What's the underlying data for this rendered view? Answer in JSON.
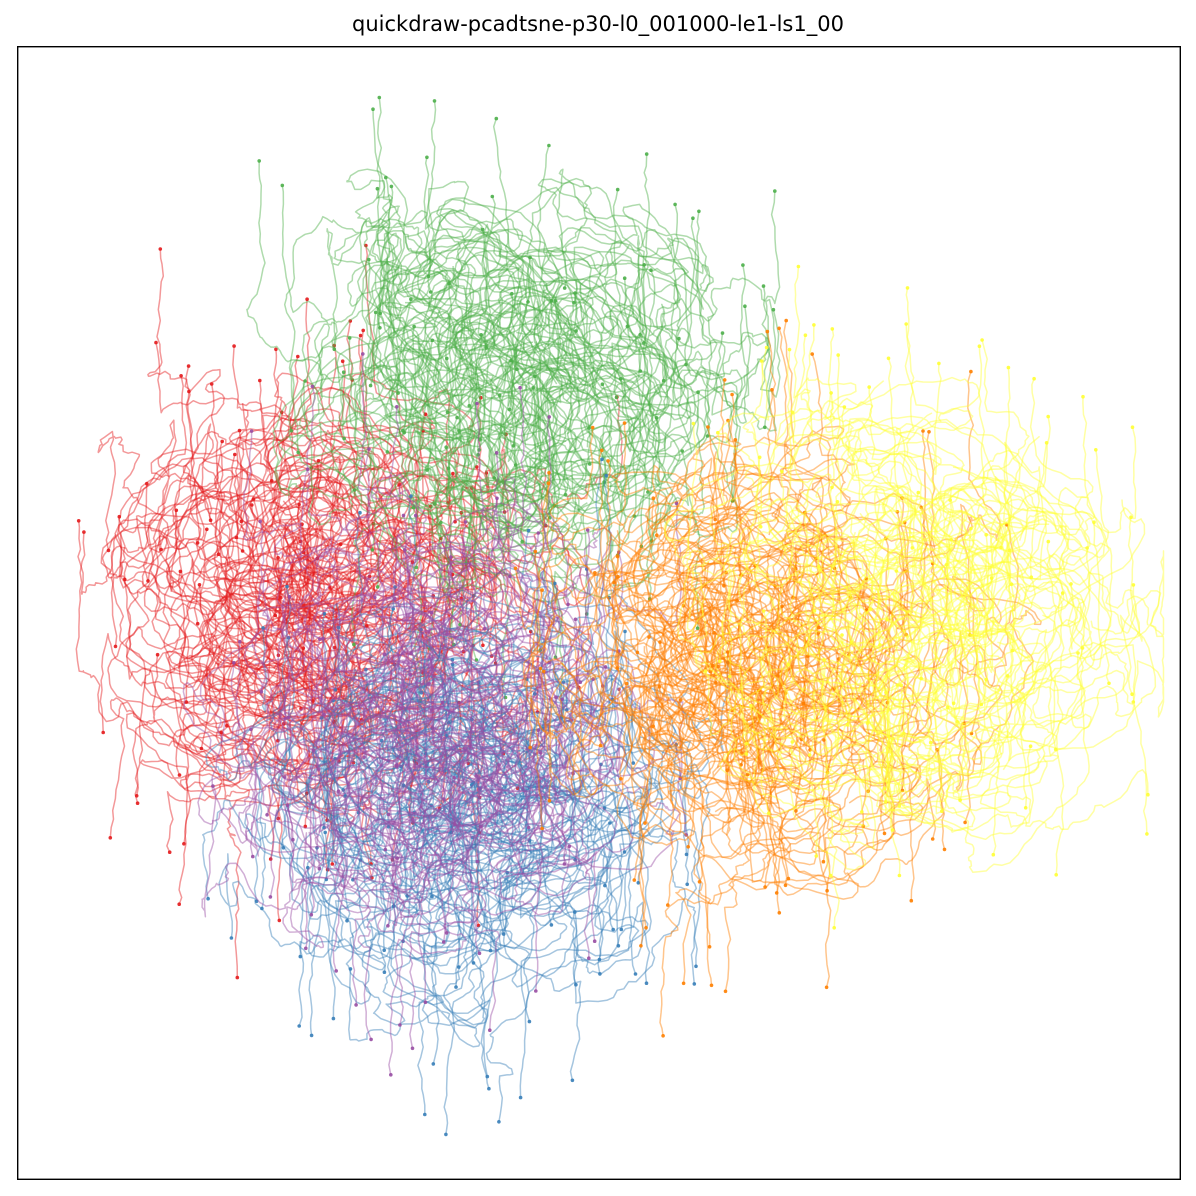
{
  "chart_data": {
    "type": "line",
    "title": "quickdraw-pcadtsne-p30-l0_001000-le1-ls1_00",
    "xlabel": "",
    "ylabel": "",
    "xlim": [
      -1,
      1
    ],
    "ylim": [
      -1,
      1
    ],
    "axes_ticks": "none",
    "grid": false,
    "legend": "none",
    "colors": {
      "red": "#e41a1c",
      "blue": "#377eb8",
      "green": "#4daf4a",
      "purple": "#984ea3",
      "orange": "#ff7f00",
      "yellow": "#ffff33"
    },
    "series": [
      {
        "color": "#e41a1c",
        "values": [],
        "cluster": {
          "center": [
            -0.48,
            0.02
          ],
          "spread": [
            0.16,
            0.2
          ],
          "count": 140
        }
      },
      {
        "color": "#4daf4a",
        "values": [],
        "cluster": {
          "center": [
            -0.14,
            0.38
          ],
          "spread": [
            0.2,
            0.22
          ],
          "count": 130
        }
      },
      {
        "color": "#377eb8",
        "values": [],
        "cluster": {
          "center": [
            -0.22,
            -0.33
          ],
          "spread": [
            0.19,
            0.1
          ],
          "count": 120
        }
      },
      {
        "color": "#984ea3",
        "values": [],
        "cluster": {
          "center": [
            -0.3,
            -0.18
          ],
          "spread": [
            0.2,
            0.16
          ],
          "count": 110
        }
      },
      {
        "color": "#ff7f00",
        "values": [],
        "cluster": {
          "center": [
            0.3,
            -0.1
          ],
          "spread": [
            0.18,
            0.2
          ],
          "count": 130
        }
      },
      {
        "color": "#ffff33",
        "values": [],
        "cluster": {
          "center": [
            0.55,
            0.0
          ],
          "spread": [
            0.22,
            0.26
          ],
          "count": 110
        }
      }
    ]
  }
}
